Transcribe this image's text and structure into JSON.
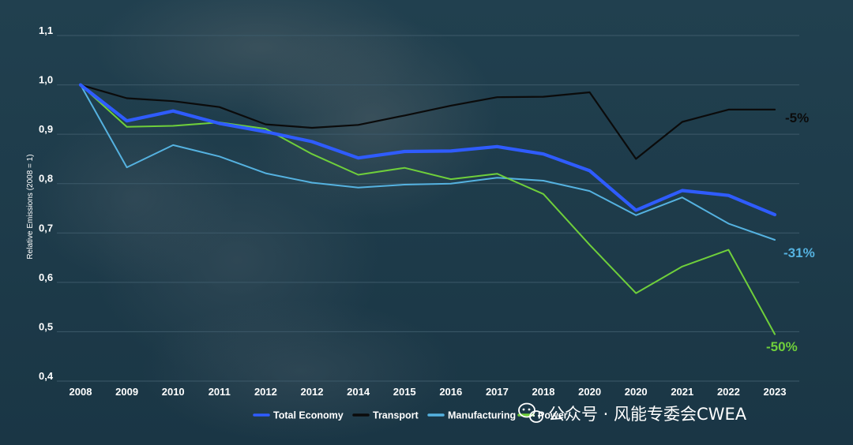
{
  "chart_data": {
    "type": "line",
    "ylabel": "Relative Emissions (2008 = 1)",
    "ylim": [
      0.4,
      1.1
    ],
    "y_ticks": [
      "0,4",
      "0,5",
      "0,6",
      "0,7",
      "0,8",
      "0,9",
      "1,0",
      "1,1"
    ],
    "categories": [
      "2008",
      "2009",
      "2010",
      "2011",
      "2012",
      "2012",
      "2014",
      "2015",
      "2016",
      "2017",
      "2018",
      "2020",
      "2020",
      "2021",
      "2022",
      "2023"
    ],
    "grid": "horizontal",
    "legend_position": "bottom",
    "series": [
      {
        "name": "Total Economy",
        "color": "#2f5cff",
        "values": [
          1.0,
          0.927,
          0.947,
          0.922,
          0.905,
          0.885,
          0.852,
          0.865,
          0.866,
          0.875,
          0.86,
          0.826,
          0.746,
          0.786,
          0.776,
          0.737
        ],
        "end_label": ""
      },
      {
        "name": "Transport",
        "color": "#0b0b0b",
        "values": [
          1.0,
          0.973,
          0.967,
          0.955,
          0.92,
          0.913,
          0.919,
          0.938,
          0.958,
          0.975,
          0.976,
          0.985,
          0.85,
          0.925,
          0.95,
          0.95
        ],
        "end_label": "-5%"
      },
      {
        "name": "Manufacturing",
        "color": "#55b2e0",
        "values": [
          1.0,
          0.833,
          0.878,
          0.855,
          0.821,
          0.802,
          0.792,
          0.798,
          0.8,
          0.812,
          0.806,
          0.785,
          0.736,
          0.772,
          0.719,
          0.686
        ],
        "end_label": "-31%"
      },
      {
        "name": "Power",
        "color": "#6fcf3b",
        "values": [
          1.0,
          0.915,
          0.917,
          0.924,
          0.911,
          0.86,
          0.818,
          0.832,
          0.809,
          0.82,
          0.779,
          0.676,
          0.578,
          0.632,
          0.666,
          0.495
        ],
        "end_label": "-50%"
      }
    ]
  },
  "watermark": {
    "text": "公众号 · 风能专委会CWEA",
    "icon": "wechat-icon"
  },
  "colors": {
    "background": "#1d3a4a",
    "grid": "#3d5a6a"
  }
}
